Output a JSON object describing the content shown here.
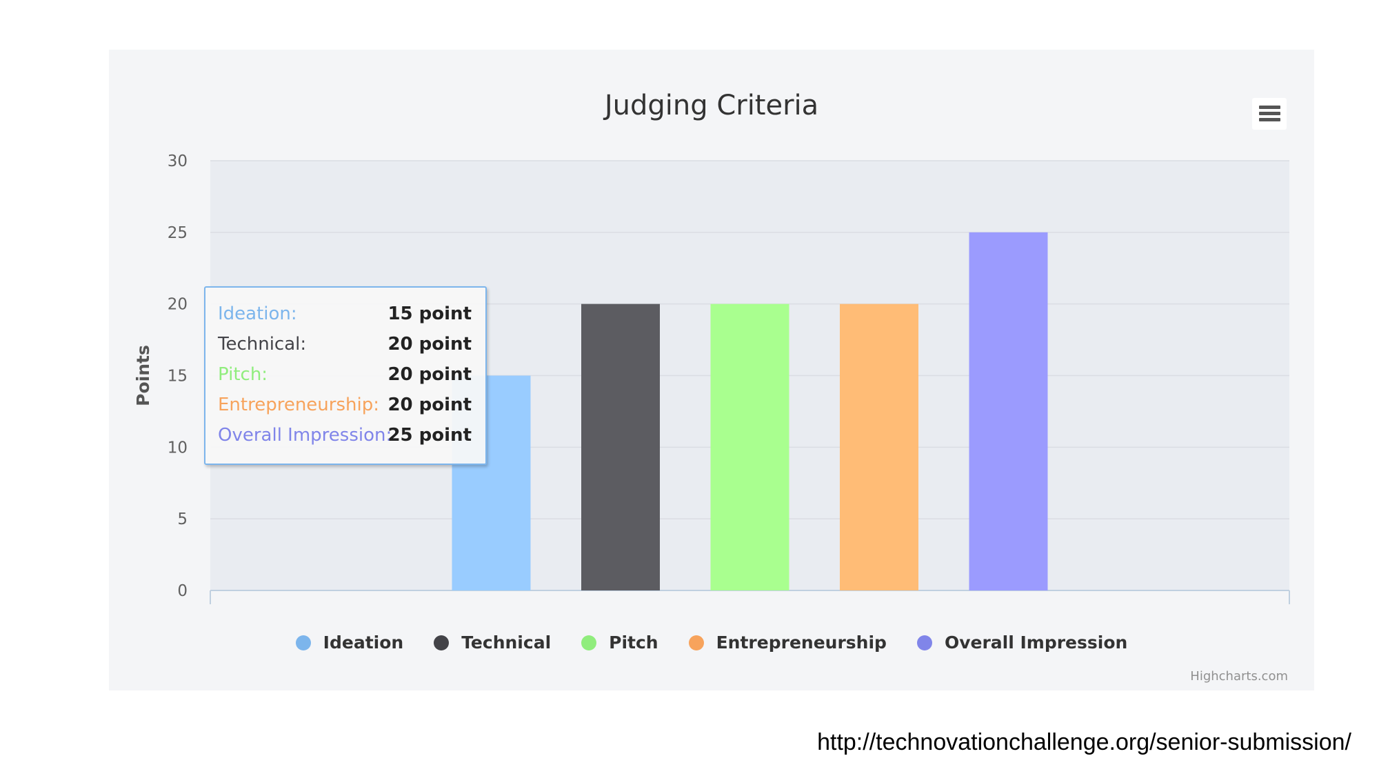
{
  "chart_data": {
    "type": "bar",
    "title": "Judging Criteria",
    "ylabel": "Points",
    "ylim": [
      0,
      30
    ],
    "yticks": [
      0,
      5,
      10,
      15,
      20,
      25,
      30
    ],
    "grid": true,
    "legend_position": "bottom",
    "series": [
      {
        "name": "Ideation",
        "values": [
          15
        ],
        "color": "#99ccff"
      },
      {
        "name": "Technical",
        "values": [
          20
        ],
        "color": "#5c5c61"
      },
      {
        "name": "Pitch",
        "values": [
          20
        ],
        "color": "#a9ff8f"
      },
      {
        "name": "Entrepreneurship",
        "values": [
          20
        ],
        "color": "#ffbc76"
      },
      {
        "name": "Overall Impression",
        "values": [
          25
        ],
        "color": "#9b9bfe"
      }
    ]
  },
  "legend_colors": [
    "#7cb5ec",
    "#434348",
    "#90ed7d",
    "#f7a35c",
    "#8085e9"
  ],
  "tooltip": {
    "rows": [
      {
        "label": "Ideation:",
        "value": "15 point",
        "color": "#7cb5ec"
      },
      {
        "label": "Technical:",
        "value": "20 point",
        "color": "#434348"
      },
      {
        "label": "Pitch:",
        "value": "20 point",
        "color": "#90ed7d"
      },
      {
        "label": "Entrepreneurship:",
        "value": "20 point",
        "color": "#f7a35c"
      },
      {
        "label": "Overall Impression:",
        "value": "25 point",
        "color": "#8085e9"
      }
    ]
  },
  "menu_icon": "hamburger-menu-icon",
  "credits": "Highcharts.com",
  "source_url": "http://technovationchallenge.org/senior-submission/"
}
